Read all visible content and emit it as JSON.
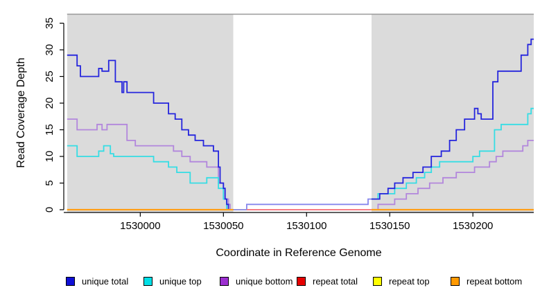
{
  "chart_data": {
    "type": "line",
    "subtype": "step",
    "title": "",
    "xlabel": "Coordinate in Reference Genome",
    "ylabel": "Read Coverage Depth",
    "x_ticks": [
      1530000,
      1530050,
      1530100,
      1530150,
      1530200
    ],
    "y_ticks": [
      0,
      5,
      10,
      15,
      20,
      25,
      30,
      35
    ],
    "x_range": [
      1529954,
      1530236.6
    ],
    "y_range": [
      0,
      35
    ],
    "grid": false,
    "plot_bg_color": "#dbdbdb",
    "top_border_color": "#999999",
    "shaded_regions": [
      [
        1529956,
        1530056
      ],
      [
        1530139,
        1530236.6
      ]
    ],
    "unshaded_region": [
      1530056,
      1530139
    ],
    "legend_position": "bottom",
    "legend": [
      {
        "label": "unique total",
        "color": "#0f0fd6"
      },
      {
        "label": "unique top",
        "color": "#00dfe6"
      },
      {
        "label": "unique bottom",
        "color": "#9c2fd0"
      },
      {
        "label": "repeat total",
        "color": "#e60000"
      },
      {
        "label": "repeat top",
        "color": "#ffff00"
      },
      {
        "label": "repeat bottom",
        "color": "#ff9900"
      }
    ],
    "draw_order": [
      "repeat top",
      "unique bottom",
      "unique top",
      "unique total",
      "repeat total",
      "repeat bottom"
    ],
    "series": [
      {
        "name": "unique total",
        "color": "#2424dd",
        "width": 1.8,
        "points": [
          [
            1529956,
            29
          ],
          [
            1529962,
            27
          ],
          [
            1529964,
            25
          ],
          [
            1529975,
            26.5
          ],
          [
            1529977,
            26
          ],
          [
            1529981,
            28
          ],
          [
            1529985,
            24
          ],
          [
            1529989,
            22
          ],
          [
            1529990,
            24
          ],
          [
            1529992,
            22
          ],
          [
            1530008,
            20
          ],
          [
            1530017,
            18
          ],
          [
            1530021,
            17
          ],
          [
            1530025,
            15
          ],
          [
            1530029,
            14
          ],
          [
            1530033,
            13
          ],
          [
            1530038,
            12
          ],
          [
            1530044,
            11
          ],
          [
            1530047,
            8
          ],
          [
            1530048,
            5
          ],
          [
            1530050,
            4
          ],
          [
            1530051,
            2
          ],
          [
            1530052,
            1
          ],
          [
            1530053,
            0
          ],
          [
            1530064,
            1
          ],
          [
            1530137,
            2
          ],
          [
            1530144,
            3
          ],
          [
            1530149,
            4
          ],
          [
            1530153,
            5
          ],
          [
            1530158,
            6
          ],
          [
            1530164,
            7
          ],
          [
            1530170,
            8
          ],
          [
            1530175,
            10
          ],
          [
            1530181,
            11
          ],
          [
            1530186,
            13
          ],
          [
            1530190,
            15
          ],
          [
            1530195,
            17
          ],
          [
            1530201,
            19
          ],
          [
            1530203,
            18
          ],
          [
            1530205,
            17
          ],
          [
            1530212,
            24
          ],
          [
            1530215,
            26
          ],
          [
            1530229,
            29
          ],
          [
            1530233,
            31
          ],
          [
            1530235,
            32
          ],
          [
            1530236.6,
            32
          ]
        ]
      },
      {
        "name": "unique top",
        "color": "#35dde4",
        "width": 1.8,
        "segments": [
          [
            [
              1529956,
              12
            ],
            [
              1529962,
              10
            ],
            [
              1529975,
              11
            ],
            [
              1529978,
              12
            ],
            [
              1529982,
              10.5
            ],
            [
              1529984,
              10
            ],
            [
              1530008,
              9
            ],
            [
              1530017,
              8
            ],
            [
              1530022,
              7
            ],
            [
              1530030,
              5
            ],
            [
              1530040,
              6
            ],
            [
              1530047,
              4
            ],
            [
              1530050,
              2
            ],
            [
              1530052,
              0
            ],
            [
              1530056,
              0
            ]
          ],
          [
            [
              1530139,
              2
            ],
            [
              1530143,
              3
            ],
            [
              1530153,
              4
            ],
            [
              1530160,
              5
            ],
            [
              1530166,
              6
            ],
            [
              1530171,
              7
            ],
            [
              1530175,
              8
            ],
            [
              1530180,
              9
            ],
            [
              1530200,
              10
            ],
            [
              1530204,
              11
            ],
            [
              1530213,
              15
            ],
            [
              1530217,
              16
            ],
            [
              1530233,
              18
            ],
            [
              1530235,
              19
            ],
            [
              1530236.6,
              19
            ]
          ]
        ]
      },
      {
        "name": "unique bottom",
        "color": "#b286dc",
        "width": 1.8,
        "segments": [
          [
            [
              1529956,
              17
            ],
            [
              1529962,
              15
            ],
            [
              1529974,
              16
            ],
            [
              1529977,
              15
            ],
            [
              1529980,
              16
            ],
            [
              1529992,
              13
            ],
            [
              1529997,
              12
            ],
            [
              1530020,
              11
            ],
            [
              1530025,
              10
            ],
            [
              1530030,
              9
            ],
            [
              1530040,
              8
            ],
            [
              1530047,
              5
            ],
            [
              1530050,
              4
            ],
            [
              1530051,
              2
            ],
            [
              1530053,
              1
            ],
            [
              1530054,
              0
            ],
            [
              1530056,
              0
            ]
          ],
          [
            [
              1530139,
              0
            ],
            [
              1530143,
              1
            ],
            [
              1530153,
              2
            ],
            [
              1530160,
              3
            ],
            [
              1530167,
              4
            ],
            [
              1530174,
              5
            ],
            [
              1530182,
              6
            ],
            [
              1530190,
              7
            ],
            [
              1530201,
              8
            ],
            [
              1530210,
              9
            ],
            [
              1530214,
              10
            ],
            [
              1530218,
              11
            ],
            [
              1530230,
              12
            ],
            [
              1530233,
              13
            ],
            [
              1530236.6,
              13
            ]
          ]
        ]
      },
      {
        "name": "repeat total",
        "color": "#ee1122",
        "width": 2,
        "points": [
          [
            1530064,
            0
          ],
          [
            1530139,
            0
          ]
        ]
      },
      {
        "name": "repeat top",
        "color": "#f0f020",
        "width": 2,
        "points": [
          [
            1529956,
            0
          ],
          [
            1530236.6,
            0
          ]
        ]
      },
      {
        "name": "repeat bottom",
        "color": "#ff9d14",
        "width": 2.2,
        "segments": [
          [
            [
              1529956,
              0
            ],
            [
              1530056,
              0
            ]
          ],
          [
            [
              1530139,
              0
            ],
            [
              1530236.6,
              0
            ]
          ]
        ]
      }
    ]
  }
}
